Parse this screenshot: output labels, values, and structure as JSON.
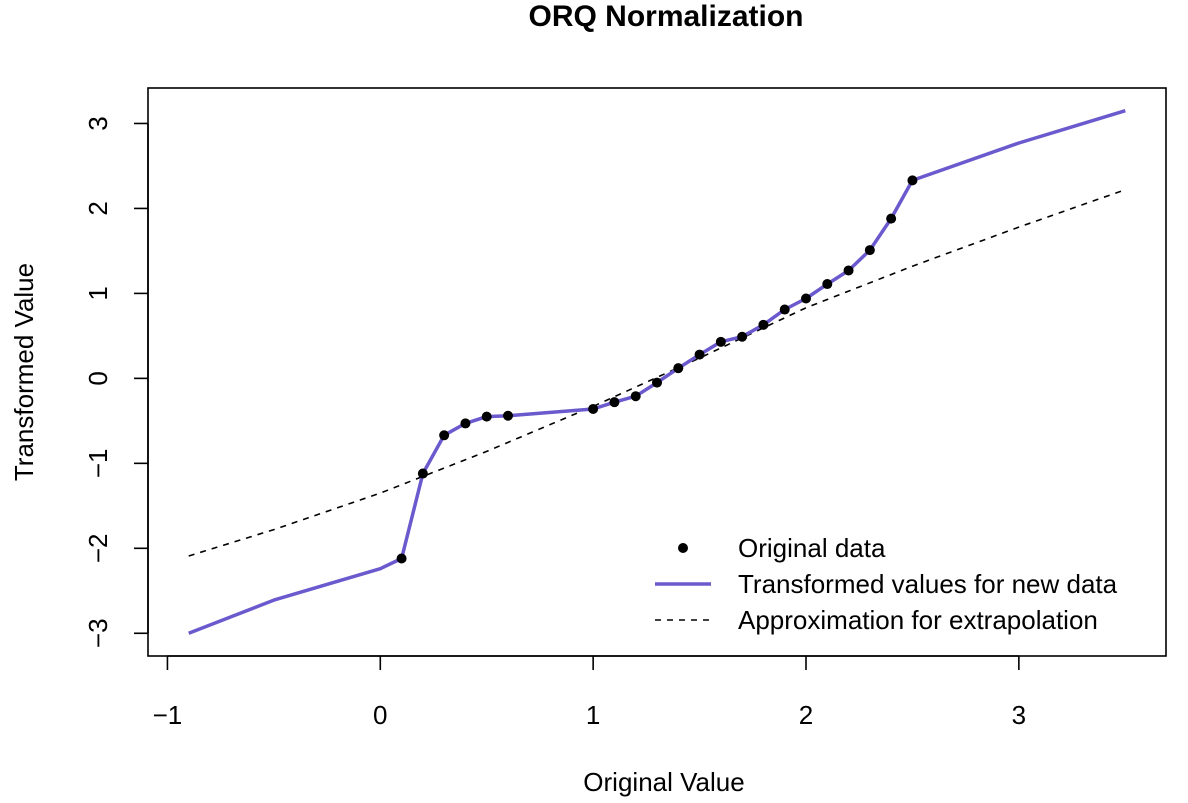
{
  "chart_data": {
    "type": "line",
    "title": "ORQ Normalization",
    "xlabel": "Original Value",
    "ylabel": "Transformed Value",
    "xlim": [
      -0.9,
      3.5
    ],
    "ylim": [
      -3.0,
      3.15
    ],
    "grid": false,
    "legend_position": "bottom-right",
    "x_ticks": [
      -1,
      0,
      1,
      2,
      3
    ],
    "x_tick_labels": [
      "−1",
      "0",
      "1",
      "2",
      "3"
    ],
    "y_ticks": [
      -3,
      -2,
      -1,
      0,
      1,
      2,
      3
    ],
    "y_tick_labels": [
      "−3",
      "−2",
      "−1",
      "0",
      "1",
      "2",
      "3"
    ],
    "series": [
      {
        "name": "Original data",
        "kind": "points",
        "color": "#000000",
        "x": [
          0.1,
          0.2,
          0.3,
          0.4,
          0.5,
          0.6,
          1.0,
          1.1,
          1.2,
          1.3,
          1.4,
          1.5,
          1.6,
          1.7,
          1.8,
          1.9,
          2.0,
          2.1,
          2.2,
          2.3,
          2.4,
          2.5
        ],
        "y": [
          -2.12,
          -1.12,
          -0.67,
          -0.53,
          -0.45,
          -0.44,
          -0.36,
          -0.28,
          -0.21,
          -0.05,
          0.12,
          0.28,
          0.43,
          0.49,
          0.63,
          0.81,
          0.94,
          1.11,
          1.27,
          1.51,
          1.88,
          2.33
        ]
      },
      {
        "name": "Transformed values for new data",
        "kind": "line",
        "color": "#6a5acd",
        "x": [
          -0.9,
          -0.5,
          0.0,
          0.1,
          0.2,
          0.3,
          0.4,
          0.5,
          0.6,
          1.0,
          1.1,
          1.2,
          1.3,
          1.4,
          1.5,
          1.6,
          1.7,
          1.8,
          1.9,
          2.0,
          2.1,
          2.2,
          2.3,
          2.4,
          2.5,
          3.0,
          3.5
        ],
        "y": [
          -3.0,
          -2.61,
          -2.24,
          -2.12,
          -1.12,
          -0.67,
          -0.53,
          -0.45,
          -0.44,
          -0.36,
          -0.28,
          -0.21,
          -0.05,
          0.12,
          0.28,
          0.43,
          0.49,
          0.63,
          0.81,
          0.94,
          1.11,
          1.27,
          1.51,
          1.88,
          2.33,
          2.77,
          3.15
        ]
      },
      {
        "name": "Approximation for extrapolation",
        "kind": "dashed-line",
        "color": "#000000",
        "x": [
          -0.9,
          -0.5,
          0.0,
          0.5,
          1.0,
          1.5,
          2.0,
          2.5,
          3.0,
          3.5
        ],
        "y": [
          -2.09,
          -1.78,
          -1.35,
          -0.86,
          -0.33,
          0.24,
          0.83,
          1.32,
          1.78,
          2.22
        ]
      }
    ]
  }
}
